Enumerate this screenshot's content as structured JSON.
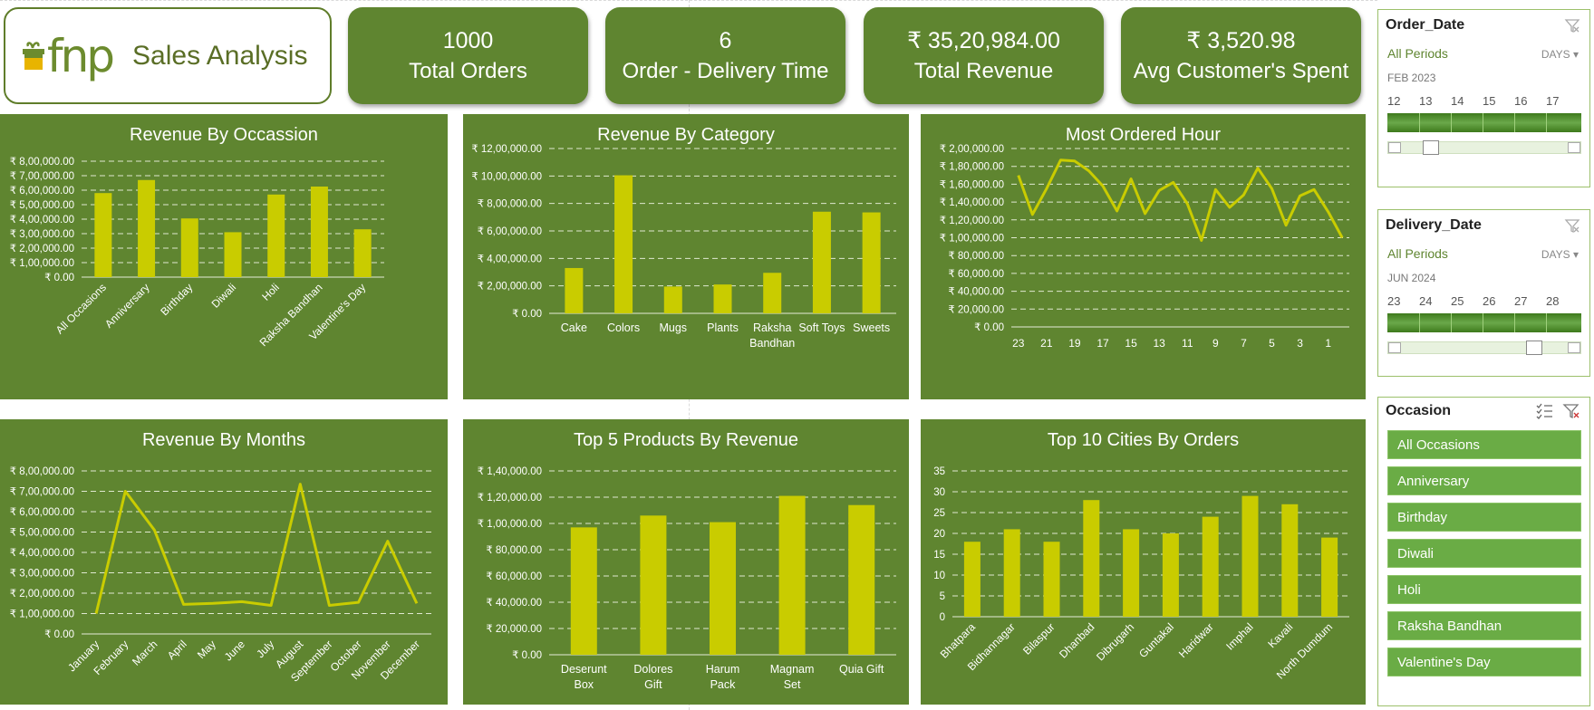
{
  "header": {
    "logo_text": "fnp",
    "title": "Sales Analysis"
  },
  "kpis": [
    {
      "value": "1000",
      "label": "Total Orders"
    },
    {
      "value": "6",
      "label": "Order - Delivery Time"
    },
    {
      "value": "₹ 35,20,984.00",
      "label": "Total Revenue"
    },
    {
      "value": "₹ 3,520.98",
      "label": "Avg Customer's Spent"
    }
  ],
  "colors": {
    "panel": "#5f8530",
    "bar": "#c9cc00",
    "gridline": "#dfe8cf",
    "slicer_item": "#6aac45"
  },
  "chart_data": [
    {
      "id": "occasion",
      "type": "bar",
      "title": "Revenue By Occassion",
      "categories": [
        "All Occasions",
        "Anniversary",
        "Birthday",
        "Diwali",
        "Holi",
        "Raksha Bandhan",
        "Valentine's Day"
      ],
      "values": [
        580000,
        670000,
        405000,
        310000,
        570000,
        625000,
        330000
      ],
      "yticks": [
        "₹ 0.00",
        "₹ 1,00,000.00",
        "₹ 2,00,000.00",
        "₹ 3,00,000.00",
        "₹ 4,00,000.00",
        "₹ 5,00,000.00",
        "₹ 6,00,000.00",
        "₹ 7,00,000.00",
        "₹ 8,00,000.00"
      ],
      "ylim": [
        0,
        800000
      ],
      "grid": true
    },
    {
      "id": "category",
      "type": "bar",
      "title": "Revenue By Category",
      "categories": [
        "Cake",
        "Colors",
        "Mugs",
        "Plants",
        "Raksha Bandhan",
        "Soft Toys",
        "Sweets"
      ],
      "values": [
        330000,
        1005000,
        195000,
        210000,
        295000,
        740000,
        735000
      ],
      "yticks": [
        "₹ 0.00",
        "₹ 2,00,000.00",
        "₹ 4,00,000.00",
        "₹ 6,00,000.00",
        "₹ 8,00,000.00",
        "₹ 10,00,000.00",
        "₹ 12,00,000.00"
      ],
      "ylim": [
        0,
        1200000
      ],
      "grid": true
    },
    {
      "id": "hour",
      "type": "line",
      "title": "Most Ordered Hour",
      "categories": [
        "23",
        "22",
        "21",
        "20",
        "19",
        "18",
        "17",
        "16",
        "15",
        "14",
        "13",
        "12",
        "11",
        "10",
        "9",
        "8",
        "7",
        "6",
        "5",
        "4",
        "3",
        "2",
        "1",
        "0"
      ],
      "xticks": [
        "23",
        "21",
        "19",
        "17",
        "15",
        "13",
        "11",
        "9",
        "7",
        "5",
        "3",
        "1"
      ],
      "values": [
        170000,
        126000,
        155000,
        187000,
        186000,
        175000,
        158000,
        130000,
        166000,
        127000,
        153000,
        162000,
        138000,
        97000,
        154000,
        134000,
        148000,
        178000,
        155000,
        114000,
        147000,
        154000,
        129000,
        100000
      ],
      "yticks": [
        "₹ 0.00",
        "₹ 20,000.00",
        "₹ 40,000.00",
        "₹ 60,000.00",
        "₹ 80,000.00",
        "₹ 1,00,000.00",
        "₹ 1,20,000.00",
        "₹ 1,40,000.00",
        "₹ 1,60,000.00",
        "₹ 1,80,000.00",
        "₹ 2,00,000.00"
      ],
      "ylim": [
        0,
        200000
      ],
      "grid": true
    },
    {
      "id": "months",
      "type": "line",
      "title": "Revenue By Months",
      "categories": [
        "January",
        "February",
        "March",
        "April",
        "May",
        "June",
        "July",
        "August",
        "September",
        "October",
        "November",
        "December"
      ],
      "values": [
        100000,
        700000,
        510000,
        145000,
        150000,
        158000,
        140000,
        735000,
        140000,
        155000,
        455000,
        150000
      ],
      "yticks": [
        "₹ 0.00",
        "₹ 1,00,000.00",
        "₹ 2,00,000.00",
        "₹ 3,00,000.00",
        "₹ 4,00,000.00",
        "₹ 5,00,000.00",
        "₹ 6,00,000.00",
        "₹ 7,00,000.00",
        "₹ 8,00,000.00"
      ],
      "ylim": [
        0,
        800000
      ],
      "grid": true
    },
    {
      "id": "products",
      "type": "bar",
      "title": "Top 5 Products By Revenue",
      "categories": [
        "Deserunt Box",
        "Dolores Gift",
        "Harum Pack",
        "Magnam Set",
        "Quia Gift"
      ],
      "values": [
        97000,
        106000,
        101000,
        121000,
        114000
      ],
      "yticks": [
        "₹ 0.00",
        "₹ 20,000.00",
        "₹ 40,000.00",
        "₹ 60,000.00",
        "₹ 80,000.00",
        "₹ 1,00,000.00",
        "₹ 1,20,000.00",
        "₹ 1,40,000.00"
      ],
      "ylim": [
        0,
        140000
      ],
      "grid": true
    },
    {
      "id": "cities",
      "type": "bar",
      "title": "Top 10 Cities By Orders",
      "categories": [
        "Bhatpara",
        "Bidhannagar",
        "Bilaspur",
        "Dhanbad",
        "Dibrugarh",
        "Guntakal",
        "Haridwar",
        "Imphal",
        "Kavali",
        "North Dumdum"
      ],
      "values": [
        18,
        21,
        18,
        28,
        21,
        20,
        24,
        29,
        27,
        19
      ],
      "yticks": [
        "0",
        "5",
        "10",
        "15",
        "20",
        "25",
        "30",
        "35"
      ],
      "ylim": [
        0,
        35
      ],
      "grid": true
    }
  ],
  "slicers": {
    "order_date": {
      "title": "Order_Date",
      "all_periods": "All Periods",
      "level": "DAYS",
      "month": "FEB 2023",
      "days": [
        "12",
        "13",
        "14",
        "15",
        "16",
        "17"
      ]
    },
    "delivery_date": {
      "title": "Delivery_Date",
      "all_periods": "All Periods",
      "level": "DAYS",
      "month": "JUN 2024",
      "days": [
        "23",
        "24",
        "25",
        "26",
        "27",
        "28"
      ]
    },
    "occasion": {
      "title": "Occasion",
      "items": [
        "All Occasions",
        "Anniversary",
        "Birthday",
        "Diwali",
        "Holi",
        "Raksha Bandhan",
        "Valentine's Day"
      ]
    }
  }
}
